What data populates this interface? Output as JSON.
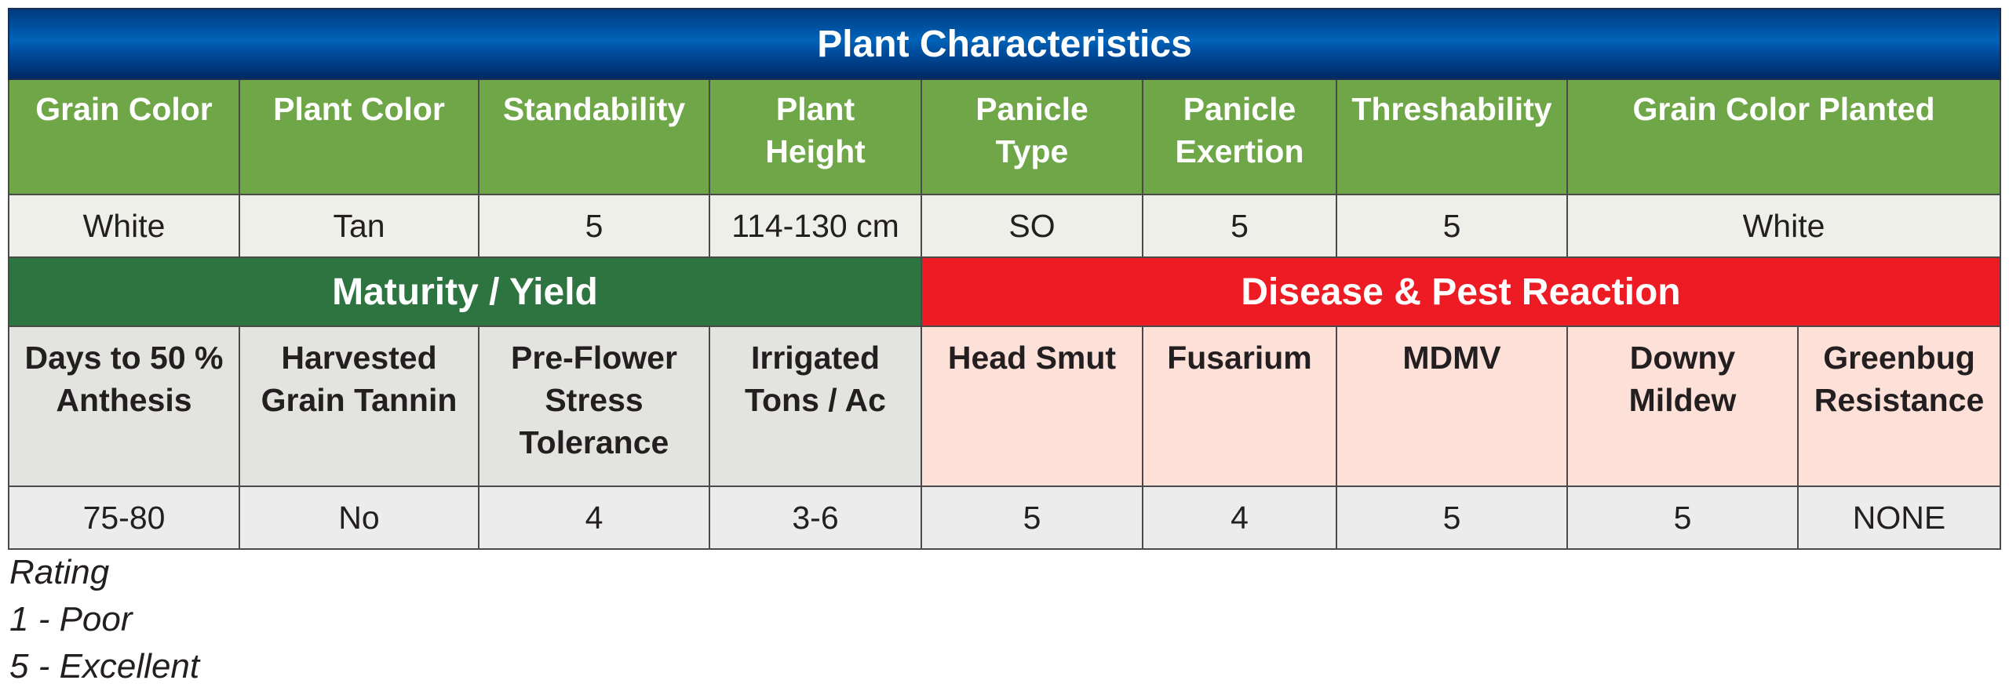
{
  "title": "Plant Characteristics",
  "plant_headers": [
    "Grain Color",
    "Plant Color",
    "Standability",
    "Plant Height",
    "Panicle Type",
    "Panicle Exertion",
    "Threshability",
    "Grain Color Planted"
  ],
  "plant_values": [
    "White",
    "Tan",
    "5",
    "114-130 cm",
    "SO",
    "5",
    "5",
    "White"
  ],
  "maturity_title": "Maturity / Yield",
  "disease_title": "Disease & Pest Reaction",
  "maturity_headers": [
    "Days to 50 % Anthesis",
    "Harvested Grain Tannin",
    "Pre-Flower Stress Tolerance",
    "Irrigated Tons / Ac"
  ],
  "disease_headers": [
    "Head Smut",
    "Fusarium",
    "MDMV",
    "Downy Mildew",
    "Greenbug Resistance"
  ],
  "maturity_values": [
    "75-80",
    "No",
    "4",
    "3-6"
  ],
  "disease_values": [
    "5",
    "4",
    "5",
    "5",
    "NONE"
  ],
  "legend": {
    "title": "Rating",
    "poor": "1 - Poor",
    "excellent": "5 - Excellent"
  },
  "colors": {
    "title_band": "#0058a8",
    "header_green": "#6fa648",
    "maturity_band": "#2e7441",
    "disease_band": "#ed1c24",
    "disease_cells": "#fde0d8",
    "maturity_cells": "#e3e3e0"
  }
}
